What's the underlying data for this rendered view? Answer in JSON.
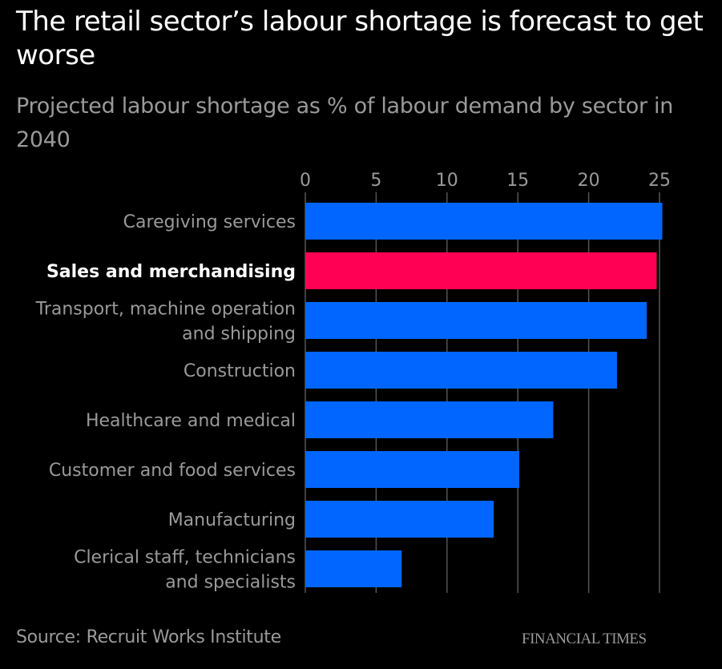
{
  "chart_data": {
    "type": "bar",
    "orientation": "horizontal",
    "title": "The retail sector’s labour shortage is forecast to get worse",
    "subtitle": "Projected labour shortage as % of labour demand by sector in 2040",
    "xlabel": "",
    "ylabel": "",
    "xlim": [
      0,
      25
    ],
    "x_ticks": [
      0,
      5,
      10,
      15,
      20,
      25
    ],
    "x_tick_labels": [
      "0",
      "5",
      "10",
      "15",
      "20",
      "25"
    ],
    "x_axis_position": "top",
    "grid": true,
    "categories": [
      "Caregiving services",
      "Sales and merchandising",
      "Transport, machine operation and shipping",
      "Construction",
      "Healthcare and medical",
      "Customer and food services",
      "Manufacturing",
      "Clerical staff, technicians and specialists"
    ],
    "category_label_lines": [
      [
        "Caregiving services"
      ],
      [
        "Sales and merchandising"
      ],
      [
        "Transport, machine operation",
        "and shipping"
      ],
      [
        "Construction"
      ],
      [
        "Healthcare and medical"
      ],
      [
        "Customer and food services"
      ],
      [
        "Manufacturing"
      ],
      [
        "Clerical staff, technicians",
        "and specialists"
      ]
    ],
    "values": [
      25.2,
      24.8,
      24.1,
      22.0,
      17.5,
      15.1,
      13.3,
      6.8
    ],
    "highlighted": [
      false,
      true,
      false,
      false,
      false,
      false,
      false,
      false
    ],
    "colors": {
      "default": "#0066ff",
      "highlight": "#ff0055",
      "grid": "#555555",
      "background": "#000000"
    }
  },
  "header": {
    "title": "The retail sector’s labour shortage is forecast to get worse",
    "subtitle": "Projected labour shortage as % of labour demand by sector in 2040"
  },
  "footer": {
    "source": "Source: Recruit Works Institute",
    "brand": "FINANCIAL TIMES"
  }
}
